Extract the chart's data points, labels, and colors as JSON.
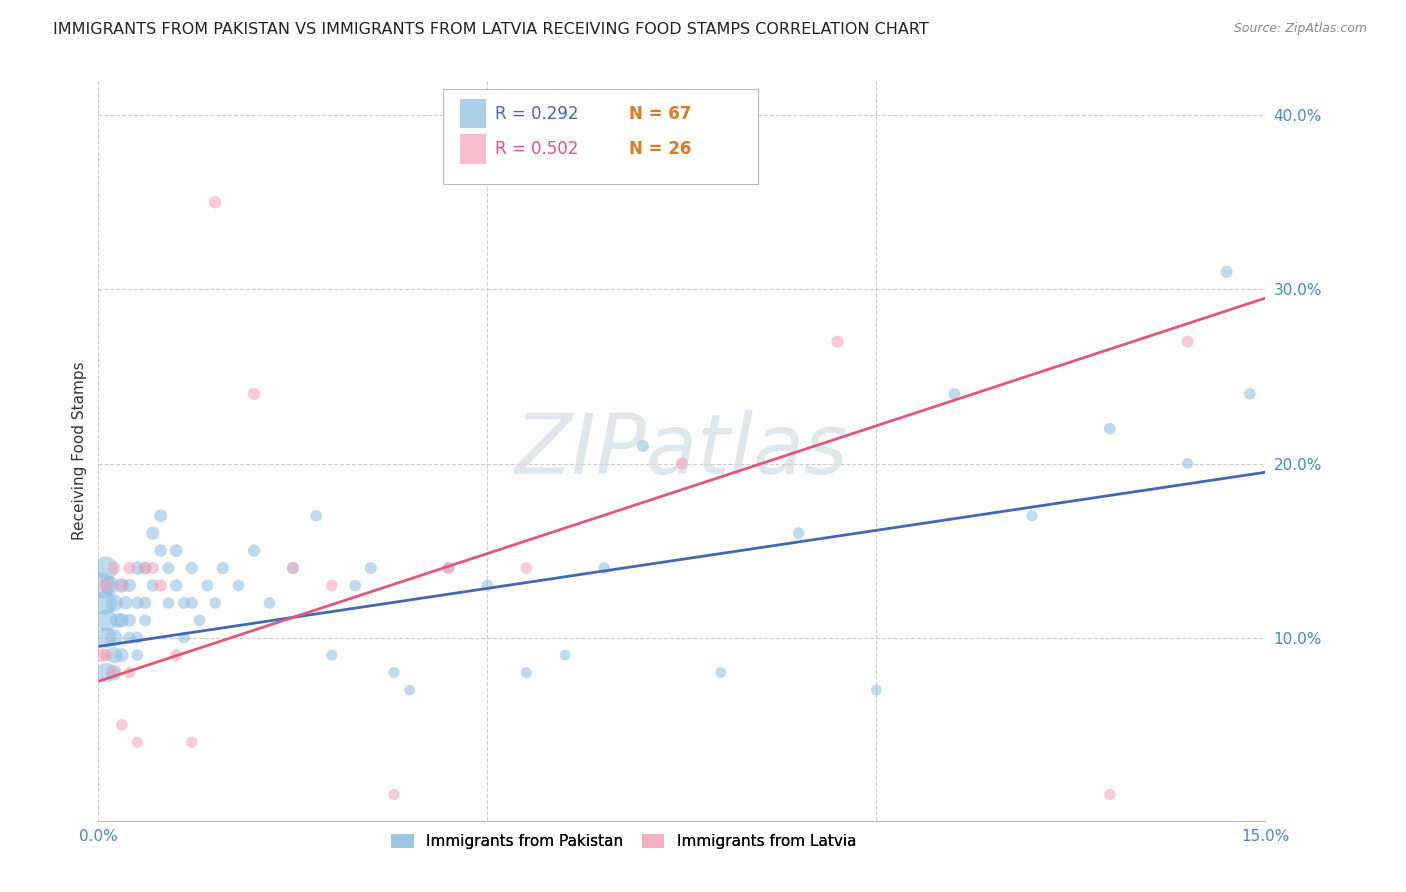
{
  "title": "IMMIGRANTS FROM PAKISTAN VS IMMIGRANTS FROM LATVIA RECEIVING FOOD STAMPS CORRELATION CHART",
  "source": "Source: ZipAtlas.com",
  "ylabel": "Receiving Food Stamps",
  "xlim": [
    0.0,
    0.15
  ],
  "ylim": [
    -0.005,
    0.42
  ],
  "xticks": [
    0.0,
    0.05,
    0.1,
    0.15
  ],
  "yticks": [
    0.1,
    0.2,
    0.3,
    0.4
  ],
  "ytick_labels": [
    "10.0%",
    "20.0%",
    "30.0%",
    "40.0%"
  ],
  "xtick_labels": [
    "0.0%",
    "",
    "",
    "15.0%"
  ],
  "pakistan_color": "#8bbcdf",
  "latvia_color": "#f4a0b8",
  "pakistan_line_color": "#4169b0",
  "latvia_line_color": "#e05878",
  "background_color": "#ffffff",
  "grid_color": "#cccccc",
  "watermark_color": "#d0dde8",
  "pakistan_line_x": [
    0.0,
    0.15
  ],
  "pakistan_line_y": [
    0.095,
    0.195
  ],
  "latvia_line_x": [
    0.0,
    0.15
  ],
  "latvia_line_y": [
    0.075,
    0.295
  ],
  "pakistan_x": [
    0.0005,
    0.0008,
    0.001,
    0.001,
    0.001,
    0.001,
    0.0015,
    0.002,
    0.002,
    0.002,
    0.002,
    0.0025,
    0.003,
    0.003,
    0.003,
    0.0035,
    0.004,
    0.004,
    0.004,
    0.005,
    0.005,
    0.005,
    0.005,
    0.006,
    0.006,
    0.006,
    0.007,
    0.007,
    0.008,
    0.008,
    0.009,
    0.009,
    0.01,
    0.01,
    0.011,
    0.011,
    0.012,
    0.012,
    0.013,
    0.014,
    0.015,
    0.016,
    0.018,
    0.02,
    0.022,
    0.025,
    0.028,
    0.03,
    0.033,
    0.035,
    0.038,
    0.04,
    0.045,
    0.05,
    0.055,
    0.06,
    0.065,
    0.07,
    0.08,
    0.09,
    0.1,
    0.11,
    0.12,
    0.13,
    0.14,
    0.145,
    0.148
  ],
  "pakistan_y": [
    0.13,
    0.12,
    0.14,
    0.11,
    0.1,
    0.08,
    0.13,
    0.12,
    0.1,
    0.09,
    0.08,
    0.11,
    0.13,
    0.11,
    0.09,
    0.12,
    0.13,
    0.11,
    0.1,
    0.14,
    0.12,
    0.1,
    0.09,
    0.14,
    0.12,
    0.11,
    0.16,
    0.13,
    0.17,
    0.15,
    0.14,
    0.12,
    0.15,
    0.13,
    0.12,
    0.1,
    0.14,
    0.12,
    0.11,
    0.13,
    0.12,
    0.14,
    0.13,
    0.15,
    0.12,
    0.14,
    0.17,
    0.09,
    0.13,
    0.14,
    0.08,
    0.07,
    0.14,
    0.13,
    0.08,
    0.09,
    0.14,
    0.21,
    0.08,
    0.16,
    0.07,
    0.24,
    0.17,
    0.22,
    0.2,
    0.31,
    0.24
  ],
  "pakistan_sizes": [
    350,
    300,
    280,
    250,
    220,
    200,
    180,
    160,
    150,
    140,
    130,
    120,
    110,
    105,
    100,
    95,
    90,
    85,
    80,
    90,
    80,
    75,
    70,
    85,
    80,
    75,
    90,
    80,
    85,
    80,
    75,
    70,
    85,
    80,
    75,
    70,
    80,
    75,
    70,
    75,
    70,
    80,
    70,
    80,
    70,
    75,
    70,
    65,
    70,
    75,
    65,
    60,
    70,
    70,
    65,
    60,
    70,
    75,
    60,
    70,
    60,
    70,
    65,
    70,
    65,
    75,
    70
  ],
  "latvia_x": [
    0.0005,
    0.001,
    0.001,
    0.002,
    0.002,
    0.003,
    0.003,
    0.004,
    0.004,
    0.005,
    0.006,
    0.007,
    0.008,
    0.01,
    0.012,
    0.015,
    0.02,
    0.025,
    0.03,
    0.038,
    0.045,
    0.055,
    0.075,
    0.095,
    0.13,
    0.14
  ],
  "latvia_y": [
    0.09,
    0.13,
    0.09,
    0.14,
    0.08,
    0.13,
    0.05,
    0.14,
    0.08,
    0.04,
    0.14,
    0.14,
    0.13,
    0.09,
    0.04,
    0.35,
    0.24,
    0.14,
    0.13,
    0.01,
    0.14,
    0.14,
    0.2,
    0.27,
    0.01,
    0.27
  ],
  "latvia_sizes": [
    100,
    90,
    80,
    85,
    75,
    80,
    70,
    80,
    70,
    65,
    80,
    75,
    80,
    75,
    65,
    80,
    80,
    75,
    70,
    65,
    75,
    70,
    75,
    75,
    65,
    75
  ],
  "legend_R_color": "#4169b0",
  "legend_N_color": "#e07820",
  "legend_latvia_R_color": "#e05878",
  "title_fontsize": 11.5,
  "tick_fontsize": 11,
  "ytick_color": "#4488cc",
  "xtick_color": "#4488cc"
}
